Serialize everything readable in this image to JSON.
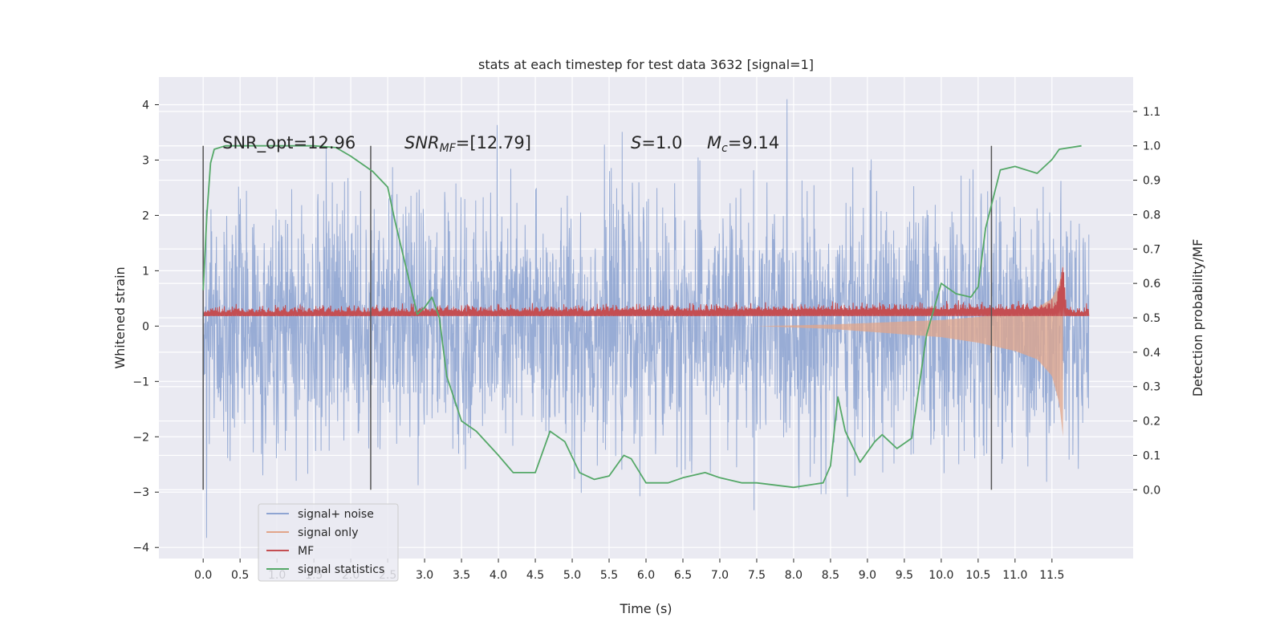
{
  "chart_data": {
    "type": "line",
    "title": "stats at each timestep for test data 3632 [signal=1]",
    "xlabel": "Time (s)",
    "ylabel_left": "Whitened strain",
    "ylabel_right": "Detection probability/MF",
    "xlim": [
      -0.6,
      12.6
    ],
    "ylim_left": [
      -4.2,
      4.5
    ],
    "ylim_right": [
      -0.2,
      1.2
    ],
    "x_ticks": [
      "0.0",
      "0.5",
      "1.0",
      "1.5",
      "2.0",
      "2.5",
      "3.0",
      "3.5",
      "4.0",
      "4.5",
      "5.0",
      "5.5",
      "6.0",
      "6.5",
      "7.0",
      "7.5",
      "8.0",
      "8.5",
      "9.0",
      "9.5",
      "10.0",
      "10.5",
      "11.0",
      "11.5"
    ],
    "y_ticks_left": [
      "4",
      "3",
      "2",
      "1",
      "0",
      "−1",
      "−2",
      "−3",
      "−4"
    ],
    "y_ticks_right": [
      "1.1",
      "1.0",
      "0.9",
      "0.8",
      "0.7",
      "0.6",
      "0.5",
      "0.4",
      "0.3",
      "0.2",
      "0.1",
      "0.0"
    ],
    "grid": true,
    "legend_position": "lower-left",
    "annotations": {
      "snr_opt": "SNR_opt=12.96",
      "snr_mf_label": "SNR",
      "snr_mf_sub": "MF",
      "snr_mf_value": "=[12.79]",
      "s_label": "S",
      "s_value": "=1.0",
      "mc_label": "M",
      "mc_sub": "c",
      "mc_value": "=9.14"
    },
    "vertical_markers_x": [
      0.0,
      2.27,
      10.68
    ],
    "series": [
      {
        "name": "signal+ noise",
        "color": "#8fa5d2",
        "envelope": {
          "x": [
            0.0,
            12.0
          ],
          "typical_amplitude": 2.0,
          "peak_amplitude": 4.1
        }
      },
      {
        "name": "signal only",
        "color": "#e2a58a",
        "envelope": {
          "x": [
            7.5,
            8.5,
            9.5,
            10.0,
            10.5,
            11.0,
            11.3,
            11.5,
            11.6,
            11.65
          ],
          "amplitude": [
            0.0,
            0.05,
            0.15,
            0.2,
            0.3,
            0.45,
            0.6,
            0.9,
            1.4,
            2.0
          ]
        }
      },
      {
        "name": "MF",
        "color": "#c44e52",
        "baseline": 0.5,
        "x": [
          0.0,
          11.55,
          11.62,
          11.65,
          11.7,
          12.0
        ],
        "y": [
          0.52,
          0.53,
          0.6,
          0.65,
          0.52,
          0.52
        ]
      },
      {
        "name": "signal statistics",
        "color": "#55a868",
        "x": [
          0.0,
          0.05,
          0.1,
          0.15,
          0.3,
          0.6,
          1.0,
          1.5,
          1.8,
          2.0,
          2.2,
          2.3,
          2.5,
          2.6,
          2.8,
          2.9,
          3.0,
          3.1,
          3.2,
          3.3,
          3.5,
          3.7,
          4.0,
          4.2,
          4.5,
          4.7,
          4.9,
          5.1,
          5.3,
          5.5,
          5.7,
          5.8,
          6.0,
          6.3,
          6.5,
          6.8,
          7.0,
          7.3,
          7.5,
          8.0,
          8.4,
          8.5,
          8.6,
          8.7,
          8.9,
          9.1,
          9.2,
          9.4,
          9.6,
          9.8,
          10.0,
          10.2,
          10.4,
          10.5,
          10.6,
          10.8,
          11.0,
          11.3,
          11.5,
          11.6,
          11.9
        ],
        "y": [
          0.58,
          0.8,
          0.95,
          0.99,
          1.0,
          1.0,
          1.0,
          1.0,
          0.995,
          0.97,
          0.94,
          0.925,
          0.88,
          0.78,
          0.6,
          0.51,
          0.53,
          0.56,
          0.5,
          0.33,
          0.2,
          0.17,
          0.1,
          0.05,
          0.05,
          0.17,
          0.14,
          0.05,
          0.03,
          0.04,
          0.1,
          0.09,
          0.02,
          0.02,
          0.035,
          0.05,
          0.035,
          0.02,
          0.02,
          0.007,
          0.02,
          0.07,
          0.27,
          0.17,
          0.08,
          0.14,
          0.16,
          0.12,
          0.15,
          0.45,
          0.6,
          0.57,
          0.56,
          0.59,
          0.76,
          0.93,
          0.94,
          0.92,
          0.96,
          0.99,
          1.0
        ]
      }
    ]
  }
}
